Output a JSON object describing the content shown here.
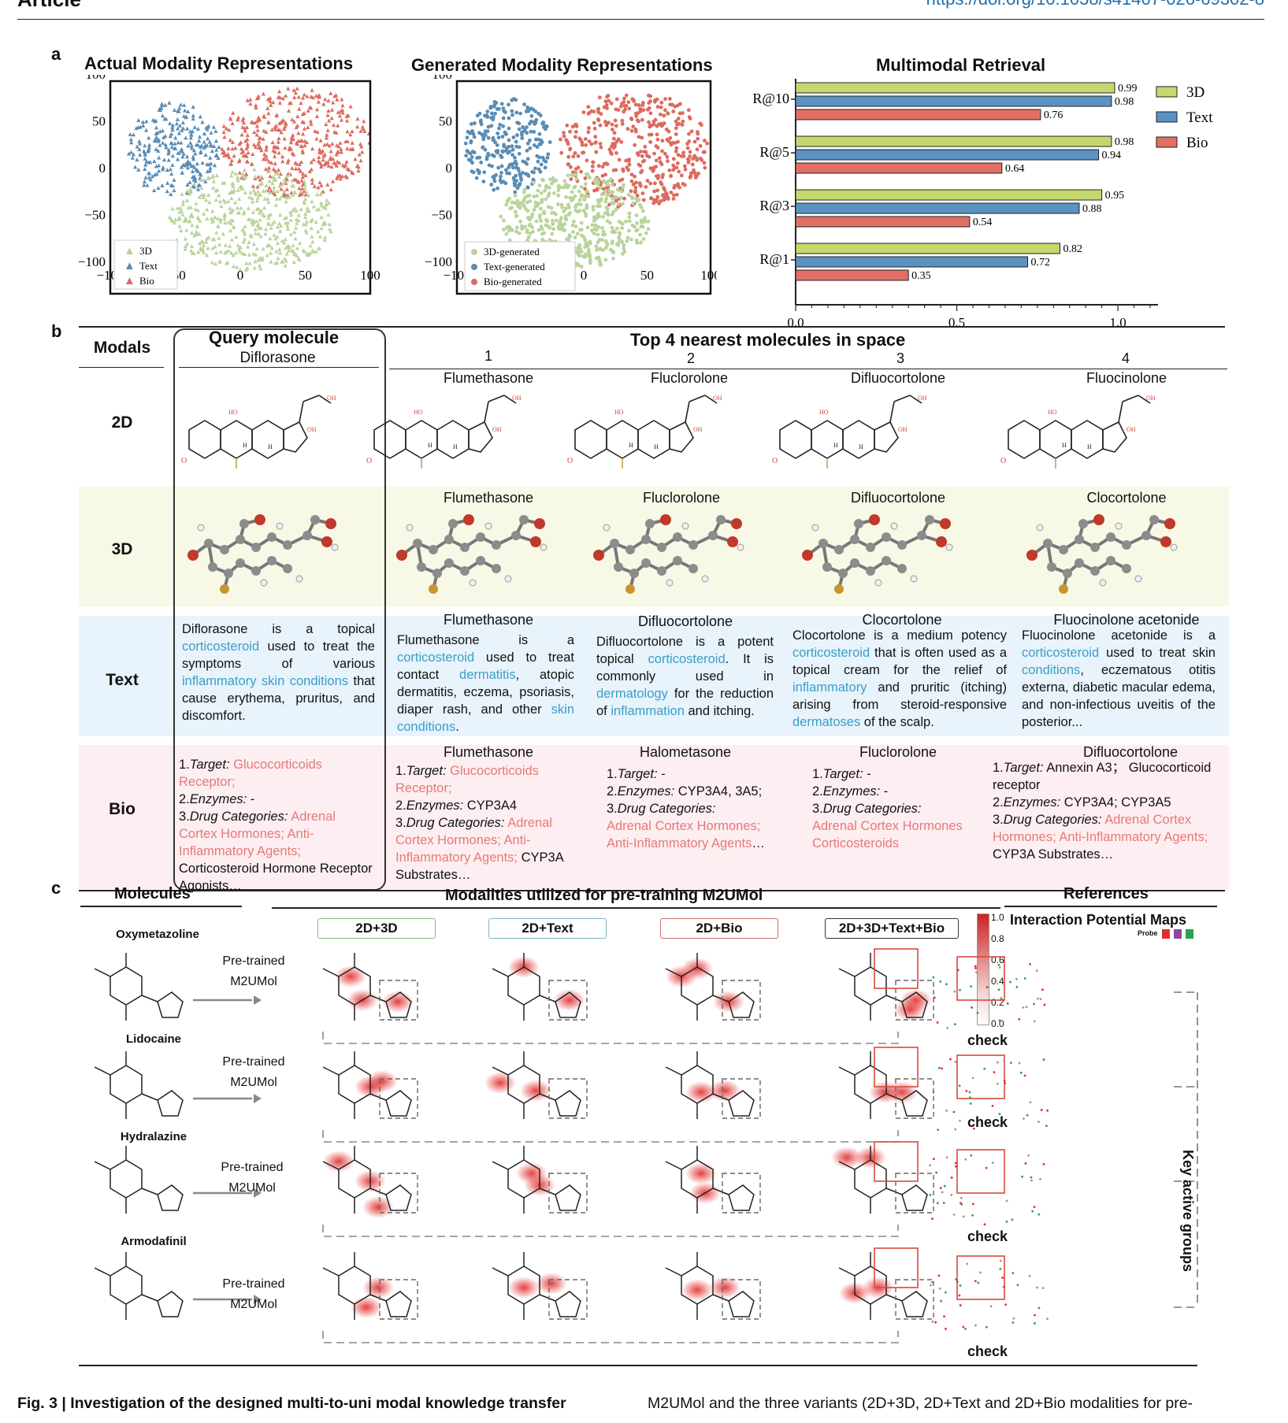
{
  "header": {
    "section": "Article",
    "doi": "https://doi.org/10.1038/s41467-026-69302-8"
  },
  "panel_a": {
    "letter": "a",
    "tsne_actual": {
      "title": "Actual Modality Representations",
      "legend": [
        "3D",
        "Text",
        "Bio"
      ],
      "xticks": [
        "−100",
        "−50",
        "0",
        "50",
        "100"
      ],
      "yticks": [
        "100",
        "50",
        "0",
        "−50",
        "−100"
      ],
      "colors": {
        "3d": "#b9d49b",
        "text": "#5a8db5",
        "bio": "#dc6b5f"
      }
    },
    "tsne_generated": {
      "title": "Generated Modality Representations",
      "legend": [
        "3D-generated",
        "Text-generated",
        "Bio-generated"
      ],
      "xticks": [
        "−100",
        "−50",
        "0",
        "50",
        "100"
      ],
      "yticks": [
        "100",
        "50",
        "0",
        "−50",
        "−100"
      ]
    }
  },
  "chart_data": {
    "type": "bar",
    "title": "Multimodal Retrieval",
    "categories": [
      "R@10",
      "R@5",
      "R@3",
      "R@1"
    ],
    "series": [
      {
        "name": "3D",
        "values": [
          0.99,
          0.98,
          0.95,
          0.82
        ],
        "color": "#c5d86d"
      },
      {
        "name": "Text",
        "values": [
          0.98,
          0.94,
          0.88,
          0.72
        ],
        "color": "#5b92c4"
      },
      {
        "name": "Bio",
        "values": [
          0.76,
          0.64,
          0.54,
          0.35
        ],
        "color": "#e26f64"
      }
    ],
    "xlim": [
      0,
      1.1
    ],
    "xticks": [
      "0.0",
      "0.5",
      "1.0"
    ],
    "orientation": "horizontal",
    "legend": "right"
  },
  "panel_b": {
    "letter": "b",
    "modals_header": "Modals",
    "query_header": "Query molecule",
    "query_name": "Diflorasone",
    "top_header": "Top 4 nearest molecules in space",
    "ranks": [
      "1",
      "2",
      "3",
      "4"
    ],
    "rows": {
      "r2d": "2D",
      "r3d": "3D",
      "rtext": "Text",
      "rbio": "Bio"
    },
    "names_2d": [
      "Flumethasone",
      "Fluclorolone",
      "Difluocortolone",
      "Fluocinolone"
    ],
    "names_3d": [
      "Flumethasone",
      "Fluclorolone",
      "Difluocortolone",
      "Clocortolone"
    ],
    "names_text": [
      "Flumethasone",
      "Difluocortolone",
      "Clocortolone",
      "Fluocinolone acetonide"
    ],
    "names_bio": [
      "Flumethasone",
      "Halometasone",
      "Fluclorolone",
      "Difluocortolone"
    ],
    "text_query": [
      "Diflorasone is a topical ",
      "corticosteroid",
      " used to treat the symptoms of various ",
      "inflammatory skin conditions",
      " that cause erythema, pruritus, and discomfort."
    ],
    "text_1": [
      "Flumethasone is a ",
      "corticosteroid",
      " used to treat contact ",
      "dermatitis",
      ", atopic dermatitis, eczema, psoriasis, diaper rash, and other ",
      "skin conditions",
      "."
    ],
    "text_2": [
      "Difluocortolone is a potent topical ",
      "corticosteroid",
      ". It is commonly used in ",
      "dermatology",
      " for the reduction of ",
      "inflammation",
      " and itching."
    ],
    "text_3": [
      "Clocortolone is a medium potency ",
      "corticosteroid",
      " that is often used as a topical cream for the relief of ",
      "inflammatory",
      " and pruritic (itching) arising from steroid-responsive ",
      "dermatoses",
      " of the scalp."
    ],
    "text_4": [
      "Fluocinolone acetonide is a ",
      "corticosteroid",
      " used to treat skin ",
      "conditions",
      ", eczematous otitis externa, diabetic macular edema, and non-infectious uveitis of the posterior..."
    ],
    "bio_labels": {
      "target": "Target:",
      "enzymes": "Enzymes:",
      "cats": "Drug Categories:",
      "n1": "1.",
      "n2": "2.",
      "n3": "3."
    },
    "bio_query": {
      "target": "Glucocorticoids Receptor;",
      "enzymes": "-",
      "cats_pink": "Adrenal Cortex Hormones; Anti-Inflammatory Agents;",
      "cats_black": "Corticosteroid Hormone Receptor Agonists…"
    },
    "bio_1": {
      "target": "Glucocorticoids Receptor;",
      "enzymes": "CYP3A4",
      "cats_pink": "Adrenal Cortex Hormones; Anti-Inflammatory Agents;",
      "cats_black": "CYP3A Substrates…"
    },
    "bio_2": {
      "target": "-",
      "enzymes": "CYP3A4, 3A5;",
      "cats_pink": "Adrenal Cortex Hormones; Anti-Inflammatory Agents",
      "cats_black": "…"
    },
    "bio_3": {
      "target": "-",
      "enzymes": "-",
      "cats_pink": "Adrenal Cortex Hormones Corticosteroids",
      "cats_black": ""
    },
    "bio_4": {
      "target": "Annexin A3； Glucocorticoid receptor",
      "enzymes": "CYP3A4; CYP3A5",
      "cats_pink": "Adrenal Cortex Hormones; Anti-Inflammatory Agents;",
      "cats_black": "CYP3A Substrates…"
    }
  },
  "panel_c": {
    "letter": "c",
    "molecules_header": "Molecules",
    "modalities_header": "Modalities utilized for pre-training M2UMol",
    "references_header": "References",
    "ipm_title": "Interaction Potential Maps",
    "probe": "Probe",
    "tags": [
      "2D+3D",
      "2D+Text",
      "2D+Bio",
      "2D+3D+Text+Bio"
    ],
    "tag_colors": [
      "#8dbd78",
      "#7fb6c6",
      "#c86d6d",
      "#333333"
    ],
    "molecules": [
      "Oxymetazoline",
      "Lidocaine",
      "Hydralazine",
      "Armodafinil"
    ],
    "pretrained": "Pre-trained",
    "model": "M2UMol",
    "check": "check",
    "key_groups": "Key active groups",
    "colorbar_ticks": [
      "1.0",
      "0.8",
      "0.6",
      "0.4",
      "0.2",
      "0.0"
    ]
  },
  "caption": {
    "left_bold": "Fig. 3 | Investigation of the designed multi-to-uni modal knowledge transfer",
    "right": "M2UMol and the three variants (2D+3D, 2D+Text and 2D+Bio modalities for pre-"
  }
}
